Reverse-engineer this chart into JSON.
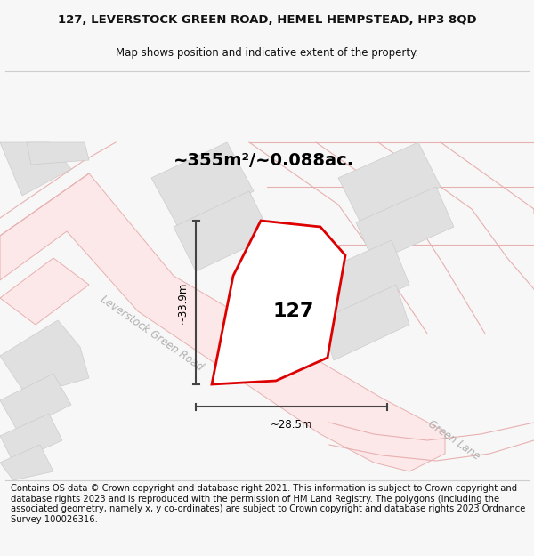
{
  "title_line1": "127, LEVERSTOCK GREEN ROAD, HEMEL HEMPSTEAD, HP3 8QD",
  "title_line2": "Map shows position and indicative extent of the property.",
  "area_text": "~355m²/~0.088ac.",
  "number_label": "127",
  "dim_vertical": "~33.9m",
  "dim_horizontal": "~28.5m",
  "road_label1": "Leverstock Green Road",
  "road_label2": "Green Lane",
  "footer_text": "Contains OS data © Crown copyright and database right 2021. This information is subject to Crown copyright and database rights 2023 and is reproduced with the permission of HM Land Registry. The polygons (including the associated geometry, namely x, y co-ordinates) are subject to Crown copyright and database rights 2023 Ordnance Survey 100026316.",
  "bg_color": "#f7f7f7",
  "map_bg": "#ffffff",
  "property_color": "#dd0000",
  "building_fill": "#e0e0e0",
  "building_edge": "#cccccc",
  "road_fill": "#fce8e8",
  "road_edge": "#e8b0b0",
  "dim_color": "#444444",
  "road_label_color": "#b0b0b0",
  "title_fontsize": 9.5,
  "subtitle_fontsize": 8.5,
  "footer_fontsize": 7.2,
  "area_fontsize": 14,
  "number_fontsize": 16,
  "dim_fontsize": 8.5,
  "road_fontsize": 8.5
}
